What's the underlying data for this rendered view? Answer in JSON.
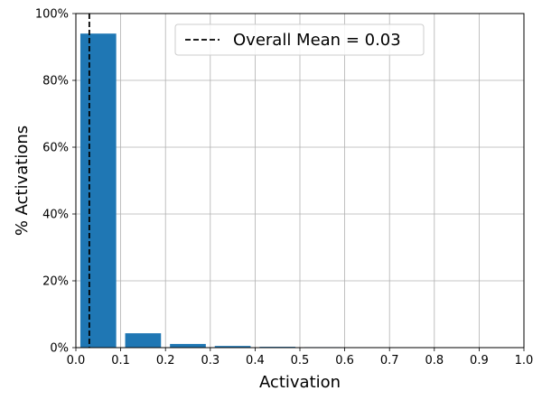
{
  "chart_data": {
    "type": "bar",
    "xlabel": "Activation",
    "ylabel": "% Activations",
    "xlim": [
      0.0,
      1.0
    ],
    "ylim": [
      0,
      100
    ],
    "x_ticks": [
      "0.0",
      "0.1",
      "0.2",
      "0.3",
      "0.4",
      "0.5",
      "0.6",
      "0.7",
      "0.8",
      "0.9",
      "1.0"
    ],
    "y_ticks": [
      "0%",
      "20%",
      "40%",
      "60%",
      "80%",
      "100%"
    ],
    "grid": true,
    "bar_color": "#1f77b4",
    "bins": [
      {
        "x0": 0.0,
        "x1": 0.1,
        "value": 94.0
      },
      {
        "x0": 0.1,
        "x1": 0.2,
        "value": 4.3
      },
      {
        "x0": 0.2,
        "x1": 0.3,
        "value": 1.1
      },
      {
        "x0": 0.3,
        "x1": 0.4,
        "value": 0.5
      },
      {
        "x0": 0.4,
        "x1": 0.5,
        "value": 0.25
      },
      {
        "x0": 0.5,
        "x1": 0.6,
        "value": 0.15
      },
      {
        "x0": 0.6,
        "x1": 0.7,
        "value": 0.05
      },
      {
        "x0": 0.7,
        "x1": 0.8,
        "value": 0.0
      },
      {
        "x0": 0.8,
        "x1": 0.9,
        "value": 0.0
      },
      {
        "x0": 0.9,
        "x1": 1.0,
        "value": 0.0
      }
    ],
    "mean_line": {
      "x": 0.03,
      "label": "Overall Mean = 0.03",
      "color": "#000000",
      "style": "dashed"
    },
    "legend": {
      "position": "top-center"
    }
  }
}
